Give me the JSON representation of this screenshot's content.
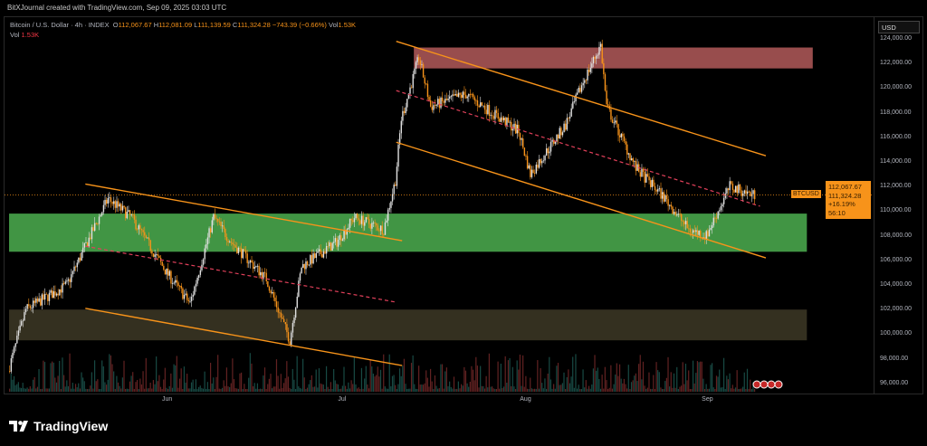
{
  "credit": "BitXJournal created with TradingView.com, Sep 09, 2025 03:03 UTC",
  "legend": {
    "symbol": "Bitcoin / U.S. Dollar · 4h · INDEX",
    "o_label": "O",
    "o": "112,067.67",
    "h_label": "H",
    "h": "112,081.09",
    "l_label": "L",
    "l": "111,139.59",
    "c_label": "C",
    "c": "111,324.28",
    "change": "−743.39 (−0.66%)",
    "vol_label": "Vol",
    "vol": "1.53K"
  },
  "vol_row": {
    "label": "Vol",
    "value": "1.53K"
  },
  "axis": {
    "currency": "USD",
    "ticks": [
      "124,000.00",
      "122,000.00",
      "120,000.00",
      "118,000.00",
      "116,000.00",
      "114,000.00",
      "112,000.00",
      "110,000.00",
      "108,000.00",
      "106,000.00",
      "104,000.00",
      "102,000.00",
      "100,000.00",
      "98,000.00",
      "96,000.00"
    ]
  },
  "price_box": {
    "symbol": "BTCUSD",
    "open": "112,067.67",
    "last": "111,324.28",
    "change": "+16.19%",
    "countdown": "56:10"
  },
  "time_labels": [
    {
      "label": "Jun",
      "date": "2025-06-01"
    },
    {
      "label": "Jul",
      "date": "2025-07-01"
    },
    {
      "label": "Aug",
      "date": "2025-08-01"
    },
    {
      "label": "Sep",
      "date": "2025-09-01"
    }
  ],
  "brand": "TradingView",
  "colors": {
    "up": "#e0e0e0",
    "down": "#f7931a",
    "accent": "#f7931a",
    "supply_zone": "#b35a5a",
    "demand_zone": "#4caf50",
    "support_zone": "#3a3524"
  },
  "chart_data": {
    "type": "candlestick",
    "ylim": [
      95500,
      124800
    ],
    "price_path": [
      [
        "2025-05-05",
        97000
      ],
      [
        "2025-05-08",
        102000
      ],
      [
        "2025-05-15",
        104000
      ],
      [
        "2025-05-22",
        111000
      ],
      [
        "2025-05-26",
        109500
      ],
      [
        "2025-06-01",
        105000
      ],
      [
        "2025-06-05",
        102500
      ],
      [
        "2025-06-09",
        109500
      ],
      [
        "2025-06-12",
        107500
      ],
      [
        "2025-06-18",
        104500
      ],
      [
        "2025-06-22",
        99500
      ],
      [
        "2025-06-24",
        105500
      ],
      [
        "2025-06-30",
        107500
      ],
      [
        "2025-07-03",
        109500
      ],
      [
        "2025-07-08",
        108500
      ],
      [
        "2025-07-10",
        112500
      ],
      [
        "2025-07-11",
        117500
      ],
      [
        "2025-07-14",
        122500
      ],
      [
        "2025-07-16",
        118500
      ],
      [
        "2025-07-22",
        119500
      ],
      [
        "2025-07-31",
        116500
      ],
      [
        "2025-08-02",
        113000
      ],
      [
        "2025-08-08",
        117000
      ],
      [
        "2025-08-11",
        120500
      ],
      [
        "2025-08-14",
        123500
      ],
      [
        "2025-08-15",
        118500
      ],
      [
        "2025-08-20",
        113500
      ],
      [
        "2025-08-25",
        111000
      ],
      [
        "2025-08-29",
        108500
      ],
      [
        "2025-09-01",
        108000
      ],
      [
        "2025-09-05",
        112000
      ],
      [
        "2025-09-09",
        111324
      ]
    ],
    "zones": [
      {
        "kind": "supply",
        "from": "2025-07-13",
        "to": "2025-09-19",
        "low": 121600,
        "high": 123300
      },
      {
        "kind": "demand",
        "from": "2025-05-05",
        "to": "2025-09-18",
        "low": 106700,
        "high": 109800
      },
      {
        "kind": "support",
        "from": "2025-05-05",
        "to": "2025-09-18",
        "low": 99500,
        "high": 102000
      }
    ],
    "lines": [
      {
        "style": "solid",
        "from": [
          "2025-05-18",
          112200
        ],
        "to": [
          "2025-07-11",
          107600
        ]
      },
      {
        "style": "solid",
        "from": [
          "2025-05-18",
          102100
        ],
        "to": [
          "2025-07-11",
          97450
        ]
      },
      {
        "style": "dashed",
        "from": [
          "2025-05-18",
          107150
        ],
        "to": [
          "2025-07-10",
          102600
        ]
      },
      {
        "style": "solid",
        "from": [
          "2025-07-10",
          123800
        ],
        "to": [
          "2025-09-11",
          114500
        ]
      },
      {
        "style": "solid",
        "from": [
          "2025-07-10",
          115600
        ],
        "to": [
          "2025-09-11",
          106200
        ]
      },
      {
        "style": "dashed",
        "from": [
          "2025-07-10",
          119800
        ],
        "to": [
          "2025-09-10",
          110400
        ]
      }
    ],
    "last_price": 111324.28
  }
}
